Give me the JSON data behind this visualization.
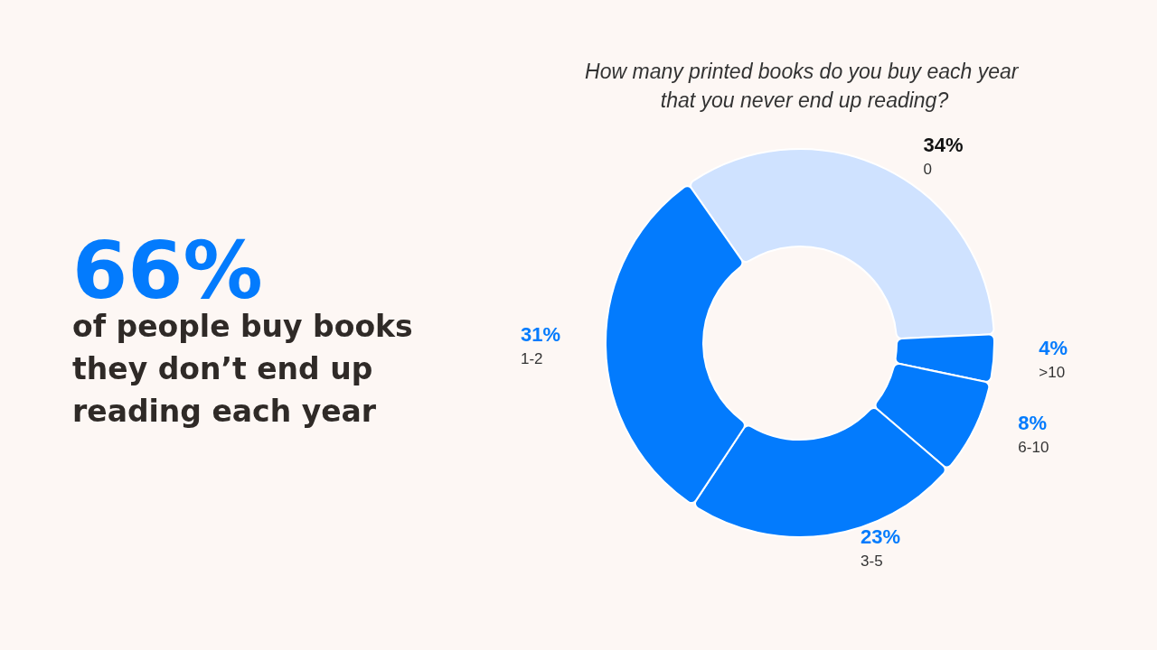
{
  "chart_data": {
    "type": "donut",
    "title": "How many printed books do you buy each year that you never end up reading?",
    "categories": [
      "0",
      ">10",
      "6-10",
      "3-5",
      "1-2"
    ],
    "values": [
      34,
      4,
      8,
      23,
      31
    ],
    "value_labels": [
      "34%",
      "4%",
      "8%",
      "23%",
      "31%"
    ],
    "colors": [
      "#cfe2ff",
      "#037bfd",
      "#037bfd",
      "#037bfd",
      "#037bfd"
    ],
    "legend": false,
    "annotations": [
      "66%",
      "of people buy books they don’t end up reading each year"
    ]
  }
}
